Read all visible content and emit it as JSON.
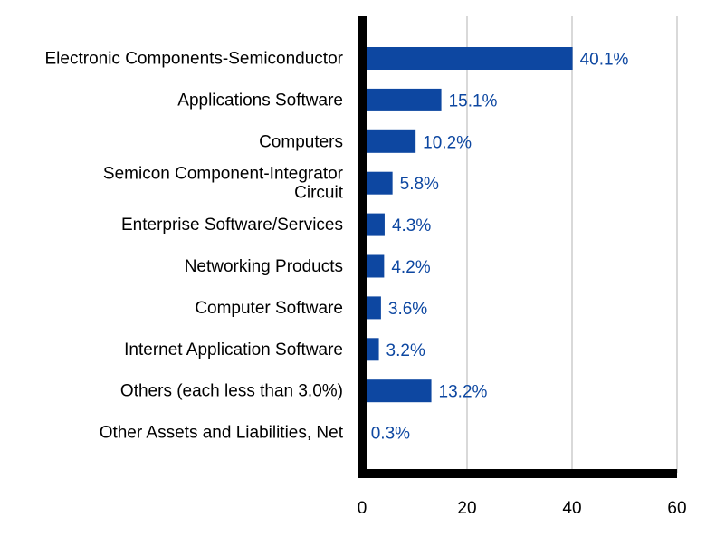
{
  "chart_data": {
    "type": "bar",
    "orientation": "horizontal",
    "categories": [
      [
        "Electronic Components-Semiconductor"
      ],
      [
        "Applications Software"
      ],
      [
        "Computers"
      ],
      [
        "Semicon Component-Integrator",
        "Circuit"
      ],
      [
        "Enterprise Software/Services"
      ],
      [
        "Networking Products"
      ],
      [
        "Computer Software"
      ],
      [
        "Internet Application Software"
      ],
      [
        "Others (each less than 3.0%)"
      ],
      [
        "Other Assets and Liabilities, Net"
      ]
    ],
    "values": [
      40.1,
      15.1,
      10.2,
      5.8,
      4.3,
      4.2,
      3.6,
      3.2,
      13.2,
      0.3
    ],
    "data_labels": [
      "40.1%",
      "15.1%",
      "10.2%",
      "5.8%",
      "4.3%",
      "4.2%",
      "3.6%",
      "3.2%",
      "13.2%",
      "0.3%"
    ],
    "xlim": [
      0,
      60
    ],
    "xticks": [
      0,
      20,
      40,
      60
    ],
    "tick_labels": [
      "0",
      "20",
      "40",
      "60"
    ],
    "grid": true,
    "title": "",
    "xlabel": "",
    "ylabel": ""
  },
  "colors": {
    "bar": "#0d47a1",
    "data_label": "#0d47a1",
    "axis": "#000000",
    "grid": "#d9d9d9",
    "text": "#000000"
  }
}
